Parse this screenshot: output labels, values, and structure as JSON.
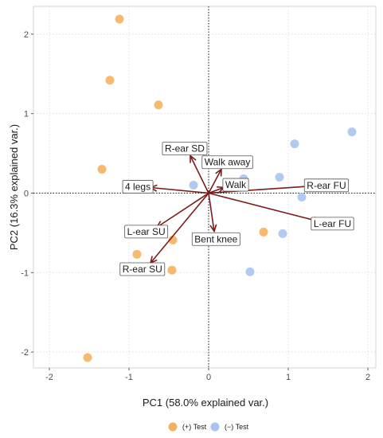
{
  "chart_data": {
    "type": "scatter",
    "xlabel": "PC1 (58.0% explained var.)",
    "ylabel": "PC2 (16.3% explained var.)",
    "xlim": [
      -2.2,
      2.1
    ],
    "ylim": [
      -2.2,
      2.35
    ],
    "xticks": [
      -2,
      -1,
      0,
      1,
      2
    ],
    "yticks": [
      -2,
      -1,
      0,
      1,
      2
    ],
    "xtick_labels": [
      "-2",
      "-1",
      "0",
      "1",
      "2"
    ],
    "ytick_labels": [
      "-2",
      "-1",
      "0",
      "1",
      "2"
    ],
    "grid": true,
    "reference_lines": [
      0,
      0
    ],
    "legend": {
      "position": "bottom"
    },
    "series": [
      {
        "name": "(+) Test",
        "color": "#F4B25E",
        "points": [
          {
            "x": -1.12,
            "y": 2.19
          },
          {
            "x": -1.24,
            "y": 1.42
          },
          {
            "x": -0.63,
            "y": 1.11
          },
          {
            "x": -1.34,
            "y": 0.3
          },
          {
            "x": -0.9,
            "y": -0.77
          },
          {
            "x": -0.45,
            "y": -0.59
          },
          {
            "x": -0.46,
            "y": -0.97
          },
          {
            "x": 0.69,
            "y": -0.49
          },
          {
            "x": -1.52,
            "y": -2.07
          }
        ]
      },
      {
        "name": "(−) Test",
        "color": "#A9C4EE",
        "points": [
          {
            "x": 1.8,
            "y": 0.77
          },
          {
            "x": 1.08,
            "y": 0.62
          },
          {
            "x": 0.44,
            "y": 0.18
          },
          {
            "x": 0.89,
            "y": 0.2
          },
          {
            "x": -0.19,
            "y": 0.1
          },
          {
            "x": 1.17,
            "y": -0.05
          },
          {
            "x": 0.93,
            "y": -0.51
          },
          {
            "x": 0.52,
            "y": -0.99
          }
        ]
      }
    ],
    "loadings": {
      "color": "#7A1C1C",
      "origin": {
        "x": 0,
        "y": 0
      },
      "vectors": [
        {
          "label": "R-ear SD",
          "x": -0.23,
          "y": 0.47
        },
        {
          "label": "Walk away",
          "x": 0.16,
          "y": 0.3
        },
        {
          "label": "4 legs",
          "x": -0.73,
          "y": 0.07
        },
        {
          "label": "Walk",
          "x": 0.19,
          "y": 0.07
        },
        {
          "label": "R-ear FU",
          "x": 1.32,
          "y": 0.09
        },
        {
          "label": "L-ear FU",
          "x": 1.4,
          "y": -0.36
        },
        {
          "label": "L-ear SU",
          "x": -0.65,
          "y": -0.43
        },
        {
          "label": "Bent knee",
          "x": 0.07,
          "y": -0.48
        },
        {
          "label": "R-ear SU",
          "x": -0.73,
          "y": -0.88
        }
      ]
    }
  }
}
